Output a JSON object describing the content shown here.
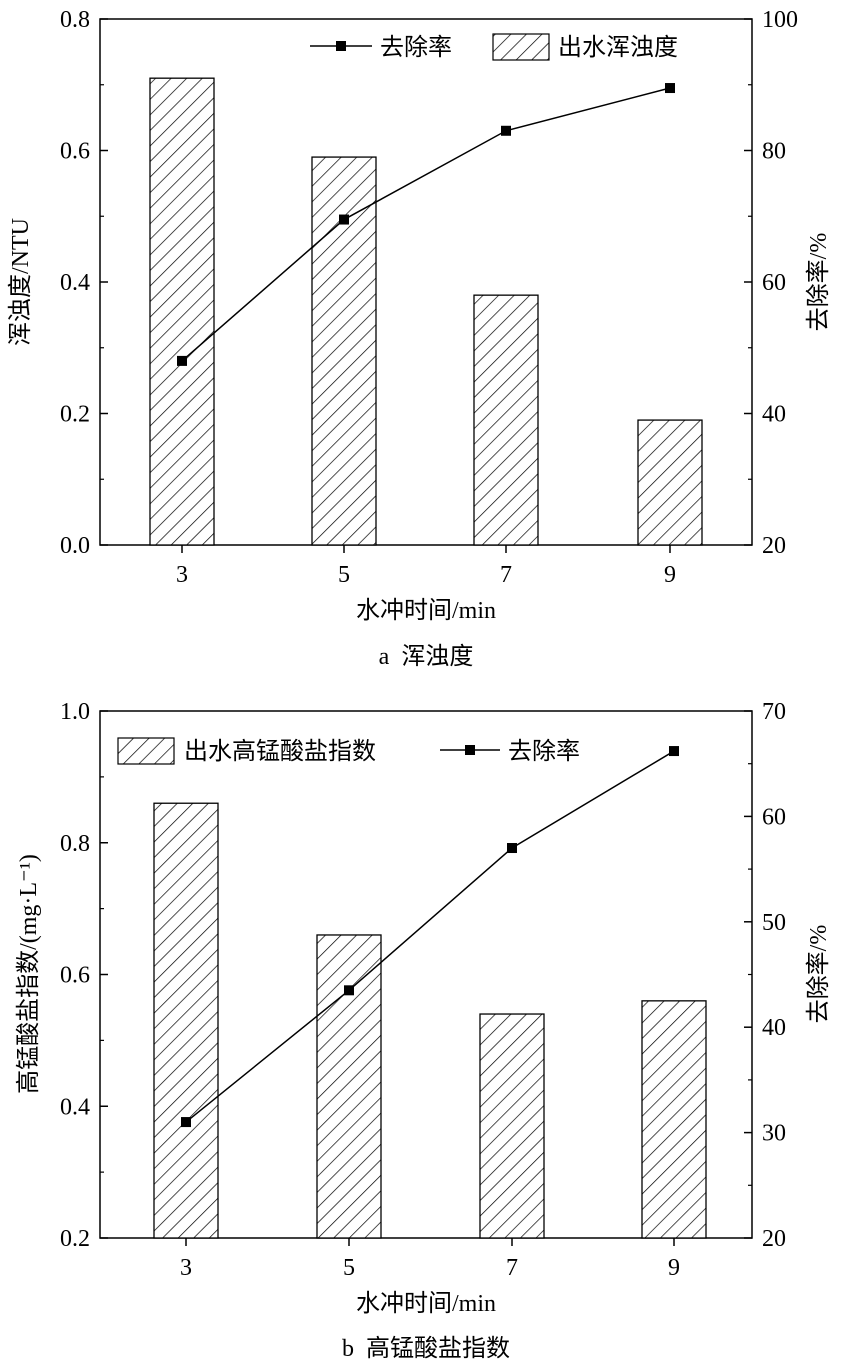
{
  "chart_data": [
    {
      "type": "bar",
      "caption": "a  浑浊度",
      "xlabel": "水冲时间/min",
      "categories": [
        "3",
        "5",
        "7",
        "9"
      ],
      "ylabel_left": "浑浊度/NTU",
      "ylabel_right": "去除率/%",
      "ylim_left": [
        0,
        0.8
      ],
      "ylim_right": [
        20,
        100
      ],
      "yticks_left": [
        "0.0",
        "0.2",
        "0.4",
        "0.6",
        "0.8"
      ],
      "yticks_right": [
        "20",
        "40",
        "60",
        "80",
        "100"
      ],
      "grid": false,
      "legend_position": "top-right",
      "series": [
        {
          "name": "出水浑浊度",
          "kind": "bar",
          "axis": "left",
          "values": [
            0.71,
            0.59,
            0.38,
            0.19
          ]
        },
        {
          "name": "去除率",
          "kind": "line",
          "axis": "right",
          "values": [
            48.0,
            69.5,
            83.0,
            89.5
          ]
        }
      ],
      "legend": [
        {
          "label": "去除率",
          "kind": "line"
        },
        {
          "label": "出水浑浊度",
          "kind": "bar"
        }
      ]
    },
    {
      "type": "bar",
      "caption": "b  高锰酸盐指数",
      "xlabel": "水冲时间/min",
      "categories": [
        "3",
        "5",
        "7",
        "9"
      ],
      "ylabel_left": "高锰酸盐指数/(mg·L⁻¹)",
      "ylabel_right": "去除率/%",
      "ylim_left": [
        0.2,
        1.0
      ],
      "ylim_right": [
        20,
        70
      ],
      "yticks_left": [
        "0.2",
        "0.4",
        "0.6",
        "0.8",
        "1.0"
      ],
      "yticks_right": [
        "20",
        "30",
        "40",
        "50",
        "60",
        "70"
      ],
      "grid": false,
      "legend_position": "top",
      "series": [
        {
          "name": "出水高锰酸盐指数",
          "kind": "bar",
          "axis": "left",
          "values": [
            0.86,
            0.66,
            0.54,
            0.56
          ]
        },
        {
          "name": "去除率",
          "kind": "line",
          "axis": "right",
          "values": [
            31.0,
            43.5,
            57.0,
            66.2
          ]
        }
      ],
      "legend": [
        {
          "label": "出水高锰酸盐指数",
          "kind": "bar"
        },
        {
          "label": "去除率",
          "kind": "line"
        }
      ]
    }
  ]
}
